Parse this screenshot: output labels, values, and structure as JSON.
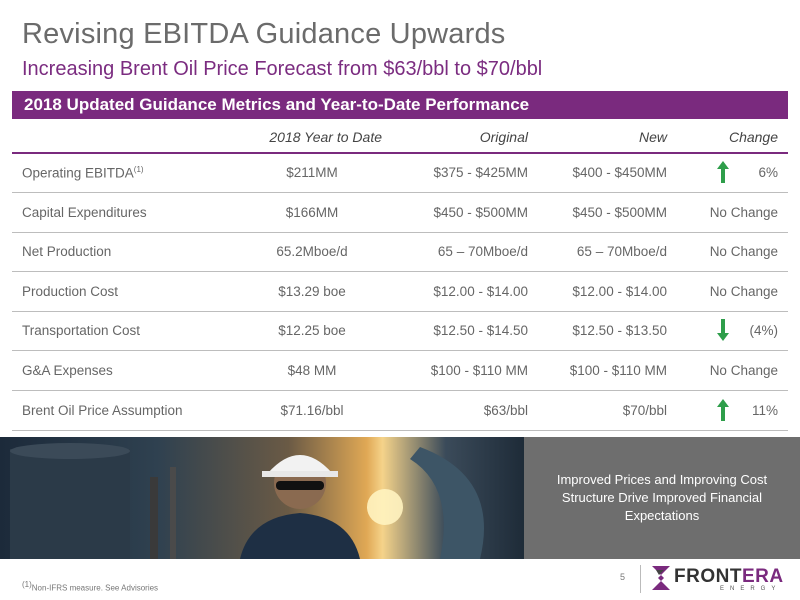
{
  "header": {
    "title": "Revising EBITDA Guidance Upwards",
    "subtitle": "Increasing Brent Oil Price Forecast from $63/bbl to $70/bbl"
  },
  "banner": {
    "label": "2018 Updated Guidance Metrics and Year-to-Date Performance"
  },
  "table": {
    "headers": [
      "2018 Year to Date",
      "Original",
      "New",
      "Change"
    ],
    "rows": [
      {
        "metric": "Operating EBITDA",
        "sup": "(1)",
        "ytd": "$211MM",
        "original": "$375 - $425MM",
        "new": "$400 - $450MM",
        "change": "6%",
        "arrow": "up"
      },
      {
        "metric": "Capital Expenditures",
        "ytd": "$166MM",
        "original": "$450 - $500MM",
        "new": "$450 - $500MM",
        "change": "No Change",
        "arrow": ""
      },
      {
        "metric": "Net Production",
        "ytd": "65.2Mboe/d",
        "original": "65 – 70Mboe/d",
        "new": "65 – 70Mboe/d",
        "change": "No Change",
        "arrow": ""
      },
      {
        "metric": "Production Cost",
        "ytd": "$13.29 boe",
        "original": "$12.00 - $14.00",
        "new": "$12.00 - $14.00",
        "change": "No Change",
        "arrow": ""
      },
      {
        "metric": "Transportation Cost",
        "ytd": "$12.25 boe",
        "original": "$12.50 - $14.50",
        "new": "$12.50 - $13.50",
        "change": "(4%)",
        "arrow": "down"
      },
      {
        "metric": "G&A Expenses",
        "ytd": "$48 MM",
        "original": "$100 - $110 MM",
        "new": "$100 - $110 MM",
        "change": "No Change",
        "arrow": ""
      },
      {
        "metric": "Brent Oil Price Assumption",
        "ytd": "$71.16/bbl",
        "original": "$63/bbl",
        "new": "$70/bbl",
        "change": "11%",
        "arrow": "up"
      }
    ]
  },
  "callout": {
    "text": "Improved Prices and Improving Cost Structure Drive Improved Financial Expectations"
  },
  "footer": {
    "footnote_marker": "(1)",
    "footnote": "Non-IFRS measure. See Advisories",
    "page_number": "5",
    "logo_main": "FRONT",
    "logo_accent": "ERA",
    "logo_sub": "ENERGY"
  },
  "colors": {
    "accent": "#7a2a7e",
    "arrow": "#2e9e4a",
    "callout_bg": "#6e6e6e"
  }
}
